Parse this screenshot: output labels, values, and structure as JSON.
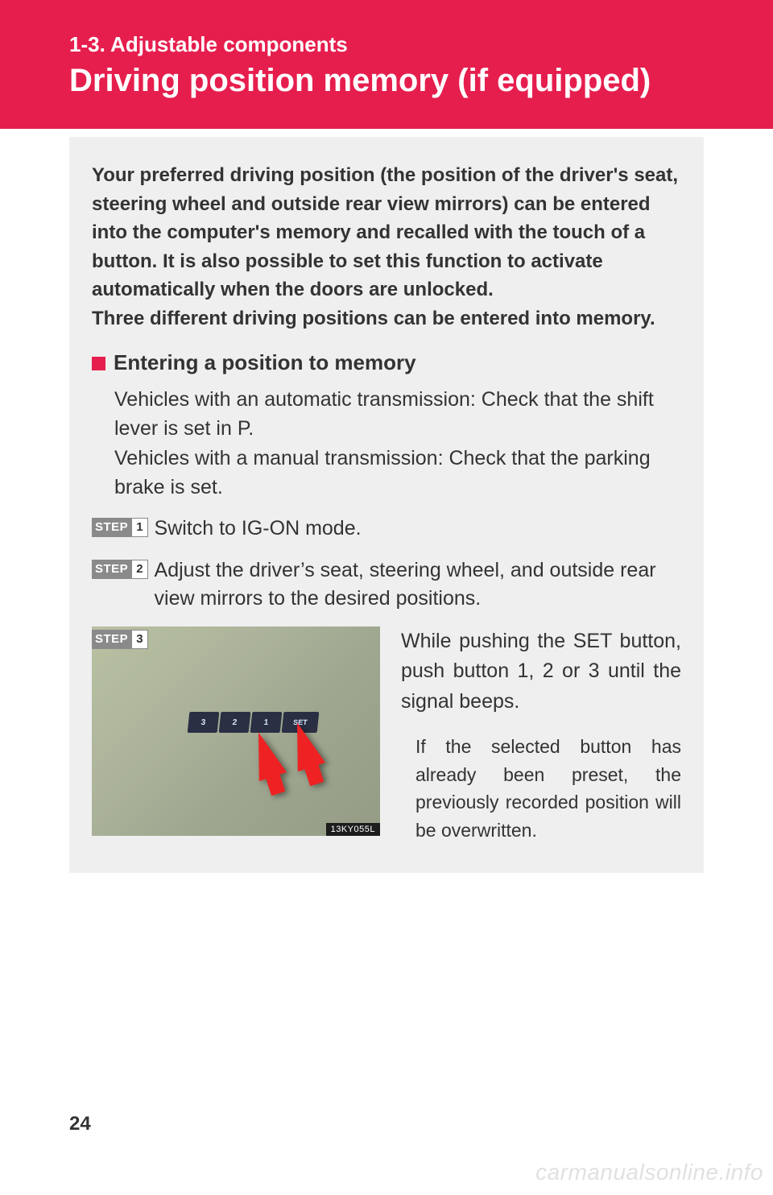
{
  "colors": {
    "brand_red": "#e61e4e",
    "content_bg": "#efefef",
    "text": "#333333",
    "step_badge_bg": "#8a8a8a",
    "page_bg": "#ffffff",
    "arrow": "#ee2222",
    "btn_bg": "#2a2f44",
    "watermark": "rgba(0,0,0,0.12)"
  },
  "typography": {
    "section_title_size": 26,
    "page_title_size": 40,
    "body_size": 24,
    "sub_title_size": 26,
    "step_text_size": 25,
    "note_size": 23,
    "page_number_size": 24,
    "watermark_size": 28
  },
  "header": {
    "section_title": "1-3. Adjustable components",
    "page_title": "Driving position memory (if equipped)"
  },
  "intro": "Your preferred driving position (the position of the driver's seat, steering wheel and outside rear view mirrors) can be entered into the computer's memory and recalled with the touch of a button. It is also possible to set this function to activate automatically when the doors are unlocked.\nThree different driving positions can be entered into memory.",
  "subsection": {
    "title": "Entering a position to memory",
    "body": "Vehicles with an automatic transmission: Check that the shift lever is set in P.\nVehicles with a manual transmission: Check that the parking brake is set."
  },
  "steps": [
    {
      "badge_label": "STEP",
      "badge_num": "1",
      "text": "Switch to IG-ON mode."
    },
    {
      "badge_label": "STEP",
      "badge_num": "2",
      "text": "Adjust the driver’s seat, steering wheel, and outside rear view mirrors to the desired positions."
    }
  ],
  "step3": {
    "badge_label": "STEP",
    "badge_num": "3",
    "image": {
      "buttons": [
        "3",
        "2",
        "1",
        "SET"
      ],
      "code": "13KY055L"
    },
    "main_text": "While pushing the SET button, push button 1, 2 or 3 until the signal beeps.",
    "note_text": "If the selected button has already been preset, the previously recorded position will be overwritten."
  },
  "page_number": "24",
  "watermark": "carmanualsonline.info"
}
